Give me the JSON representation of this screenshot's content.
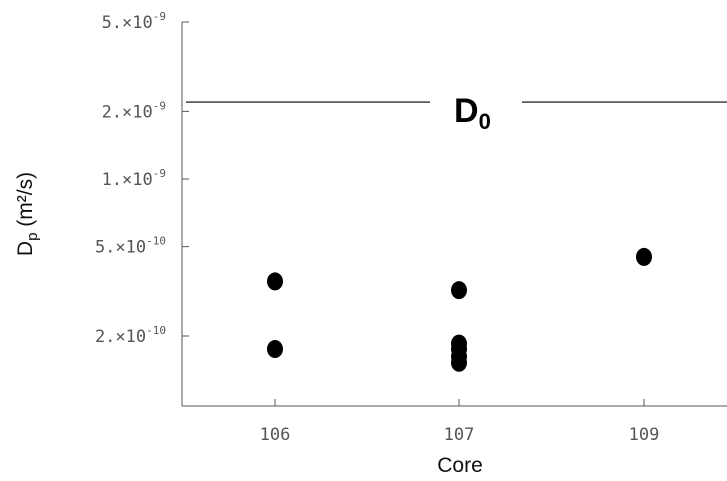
{
  "chart_data": {
    "type": "scatter",
    "title": "",
    "xlabel": "Core",
    "ylabel": "Dp (m²/s)",
    "ylabel_main": "D",
    "ylabel_sub": "p",
    "ylabel_units": " (m²/s)",
    "yscale": "log",
    "ylim": [
      1.3e-10,
      5e-09
    ],
    "categories": [
      "106",
      "107",
      "109"
    ],
    "y_ticks": [
      {
        "value": 5e-09,
        "mantissa": "5.×10",
        "exponent": "-9"
      },
      {
        "value": 2e-09,
        "mantissa": "2.×10",
        "exponent": "-9"
      },
      {
        "value": 1e-09,
        "mantissa": "1.×10",
        "exponent": "-9"
      },
      {
        "value": 5e-10,
        "mantissa": "5.×10",
        "exponent": "-10"
      },
      {
        "value": 2e-10,
        "mantissa": "2.×10",
        "exponent": "-10"
      }
    ],
    "points": [
      {
        "x": "106",
        "y": 3.5e-10
      },
      {
        "x": "106",
        "y": 1.75e-10
      },
      {
        "x": "107",
        "y": 3.2e-10
      },
      {
        "x": "107",
        "y": 1.85e-10
      },
      {
        "x": "107",
        "y": 1.75e-10
      },
      {
        "x": "107",
        "y": 1.62e-10
      },
      {
        "x": "107",
        "y": 1.52e-10
      },
      {
        "x": "109",
        "y": 4.5e-10
      }
    ],
    "reference_line": {
      "y": 2.2e-09,
      "label_main": "D",
      "label_sub": "0"
    },
    "grid": false,
    "legend": "none",
    "marker_color": "#000000"
  }
}
